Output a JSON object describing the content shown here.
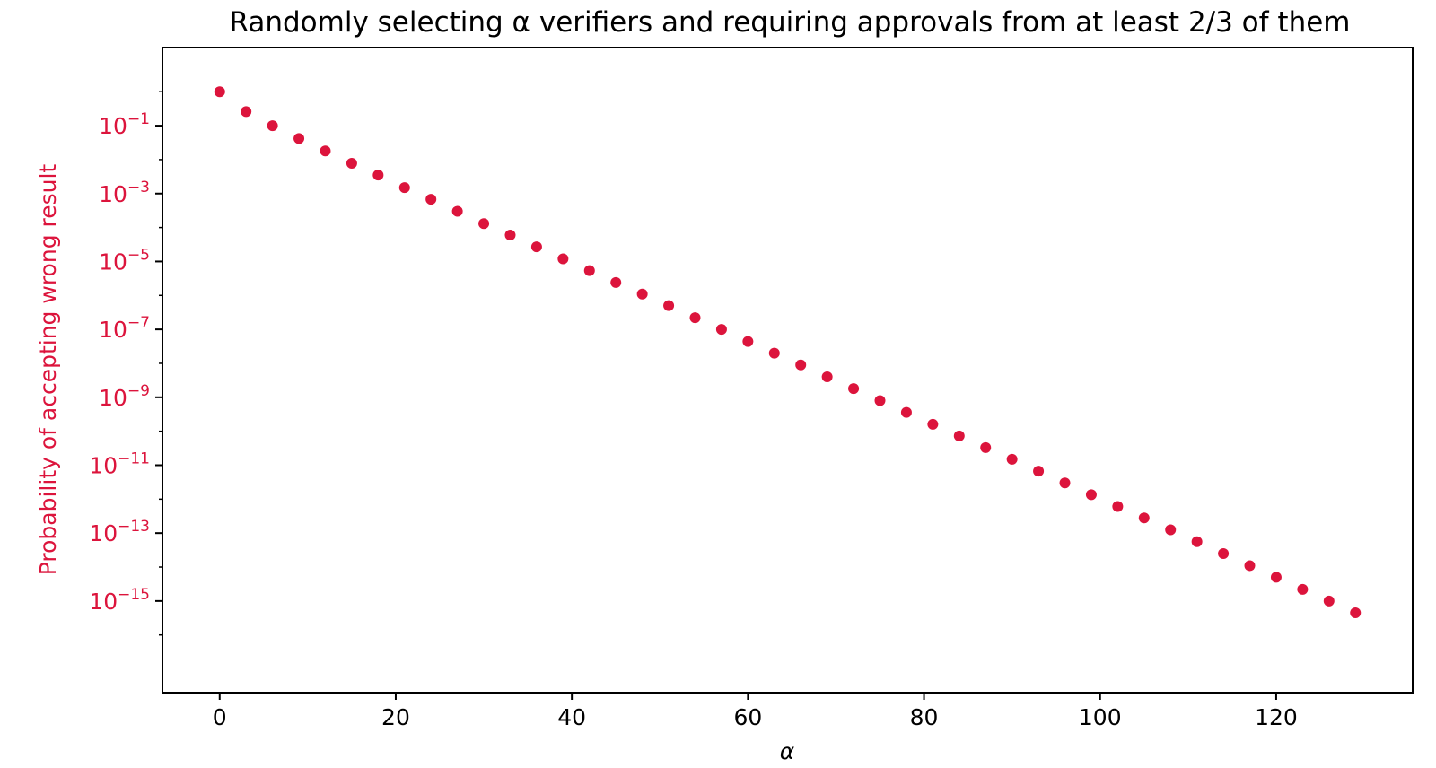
{
  "chart_data": {
    "type": "scatter",
    "title": "Randomly selecting α verifiers and requiring approvals from at least 2/3 of them",
    "xlabel": "α",
    "ylabel": "Probability of accepting wrong result",
    "x_scale": "linear",
    "y_scale": "log",
    "xlim": [
      -6.5,
      135.5
    ],
    "ylim": [
      2e-18,
      20.0
    ],
    "x_ticks": [
      0,
      20,
      40,
      60,
      80,
      100,
      120
    ],
    "x_tick_labels": [
      "0",
      "20",
      "40",
      "60",
      "80",
      "100",
      "120"
    ],
    "y_ticks": [
      0.1,
      0.001,
      1e-05,
      1e-07,
      1e-09,
      1e-11,
      1e-13,
      1e-15
    ],
    "y_tick_labels": [
      {
        "base": "10",
        "exp": "−1"
      },
      {
        "base": "10",
        "exp": "−3"
      },
      {
        "base": "10",
        "exp": "−5"
      },
      {
        "base": "10",
        "exp": "−7"
      },
      {
        "base": "10",
        "exp": "−9"
      },
      {
        "base": "10",
        "exp": "−11"
      },
      {
        "base": "10",
        "exp": "−13"
      },
      {
        "base": "10",
        "exp": "−15"
      }
    ],
    "grid": false,
    "legend": "none",
    "colors": {
      "points": "#dc143c",
      "ylabel": "#dc143c",
      "ytick": "#dc143c",
      "axis": "#000000"
    },
    "series": [
      {
        "x": [
          0,
          3,
          6,
          9,
          12,
          15,
          18,
          21,
          24,
          27,
          30,
          33,
          36,
          39,
          42,
          45,
          48,
          51,
          54,
          57,
          60,
          63,
          66,
          69,
          72,
          75,
          78,
          81,
          84,
          87,
          90,
          93,
          96,
          99,
          102,
          105,
          108,
          111,
          114,
          117,
          120,
          123,
          126,
          129
        ],
        "y": [
          1.0,
          0.26,
          0.1,
          0.042,
          0.018,
          0.0078,
          0.0035,
          0.0015,
          0.00068,
          0.0003,
          0.00013,
          6e-05,
          2.7e-05,
          1.2e-05,
          5.4e-06,
          2.4e-06,
          1.1e-06,
          5e-07,
          2.2e-07,
          1e-07,
          4.4e-08,
          2e-08,
          9e-09,
          4e-09,
          1.8e-09,
          8e-10,
          3.6e-10,
          1.6e-10,
          7.3e-11,
          3.3e-11,
          1.5e-11,
          6.7e-12,
          3e-12,
          1.35e-12,
          6.1e-13,
          2.8e-13,
          1.25e-13,
          5.6e-14,
          2.5e-14,
          1.1e-14,
          5e-15,
          2.2e-15,
          1e-15,
          4.5e-16
        ]
      }
    ]
  }
}
